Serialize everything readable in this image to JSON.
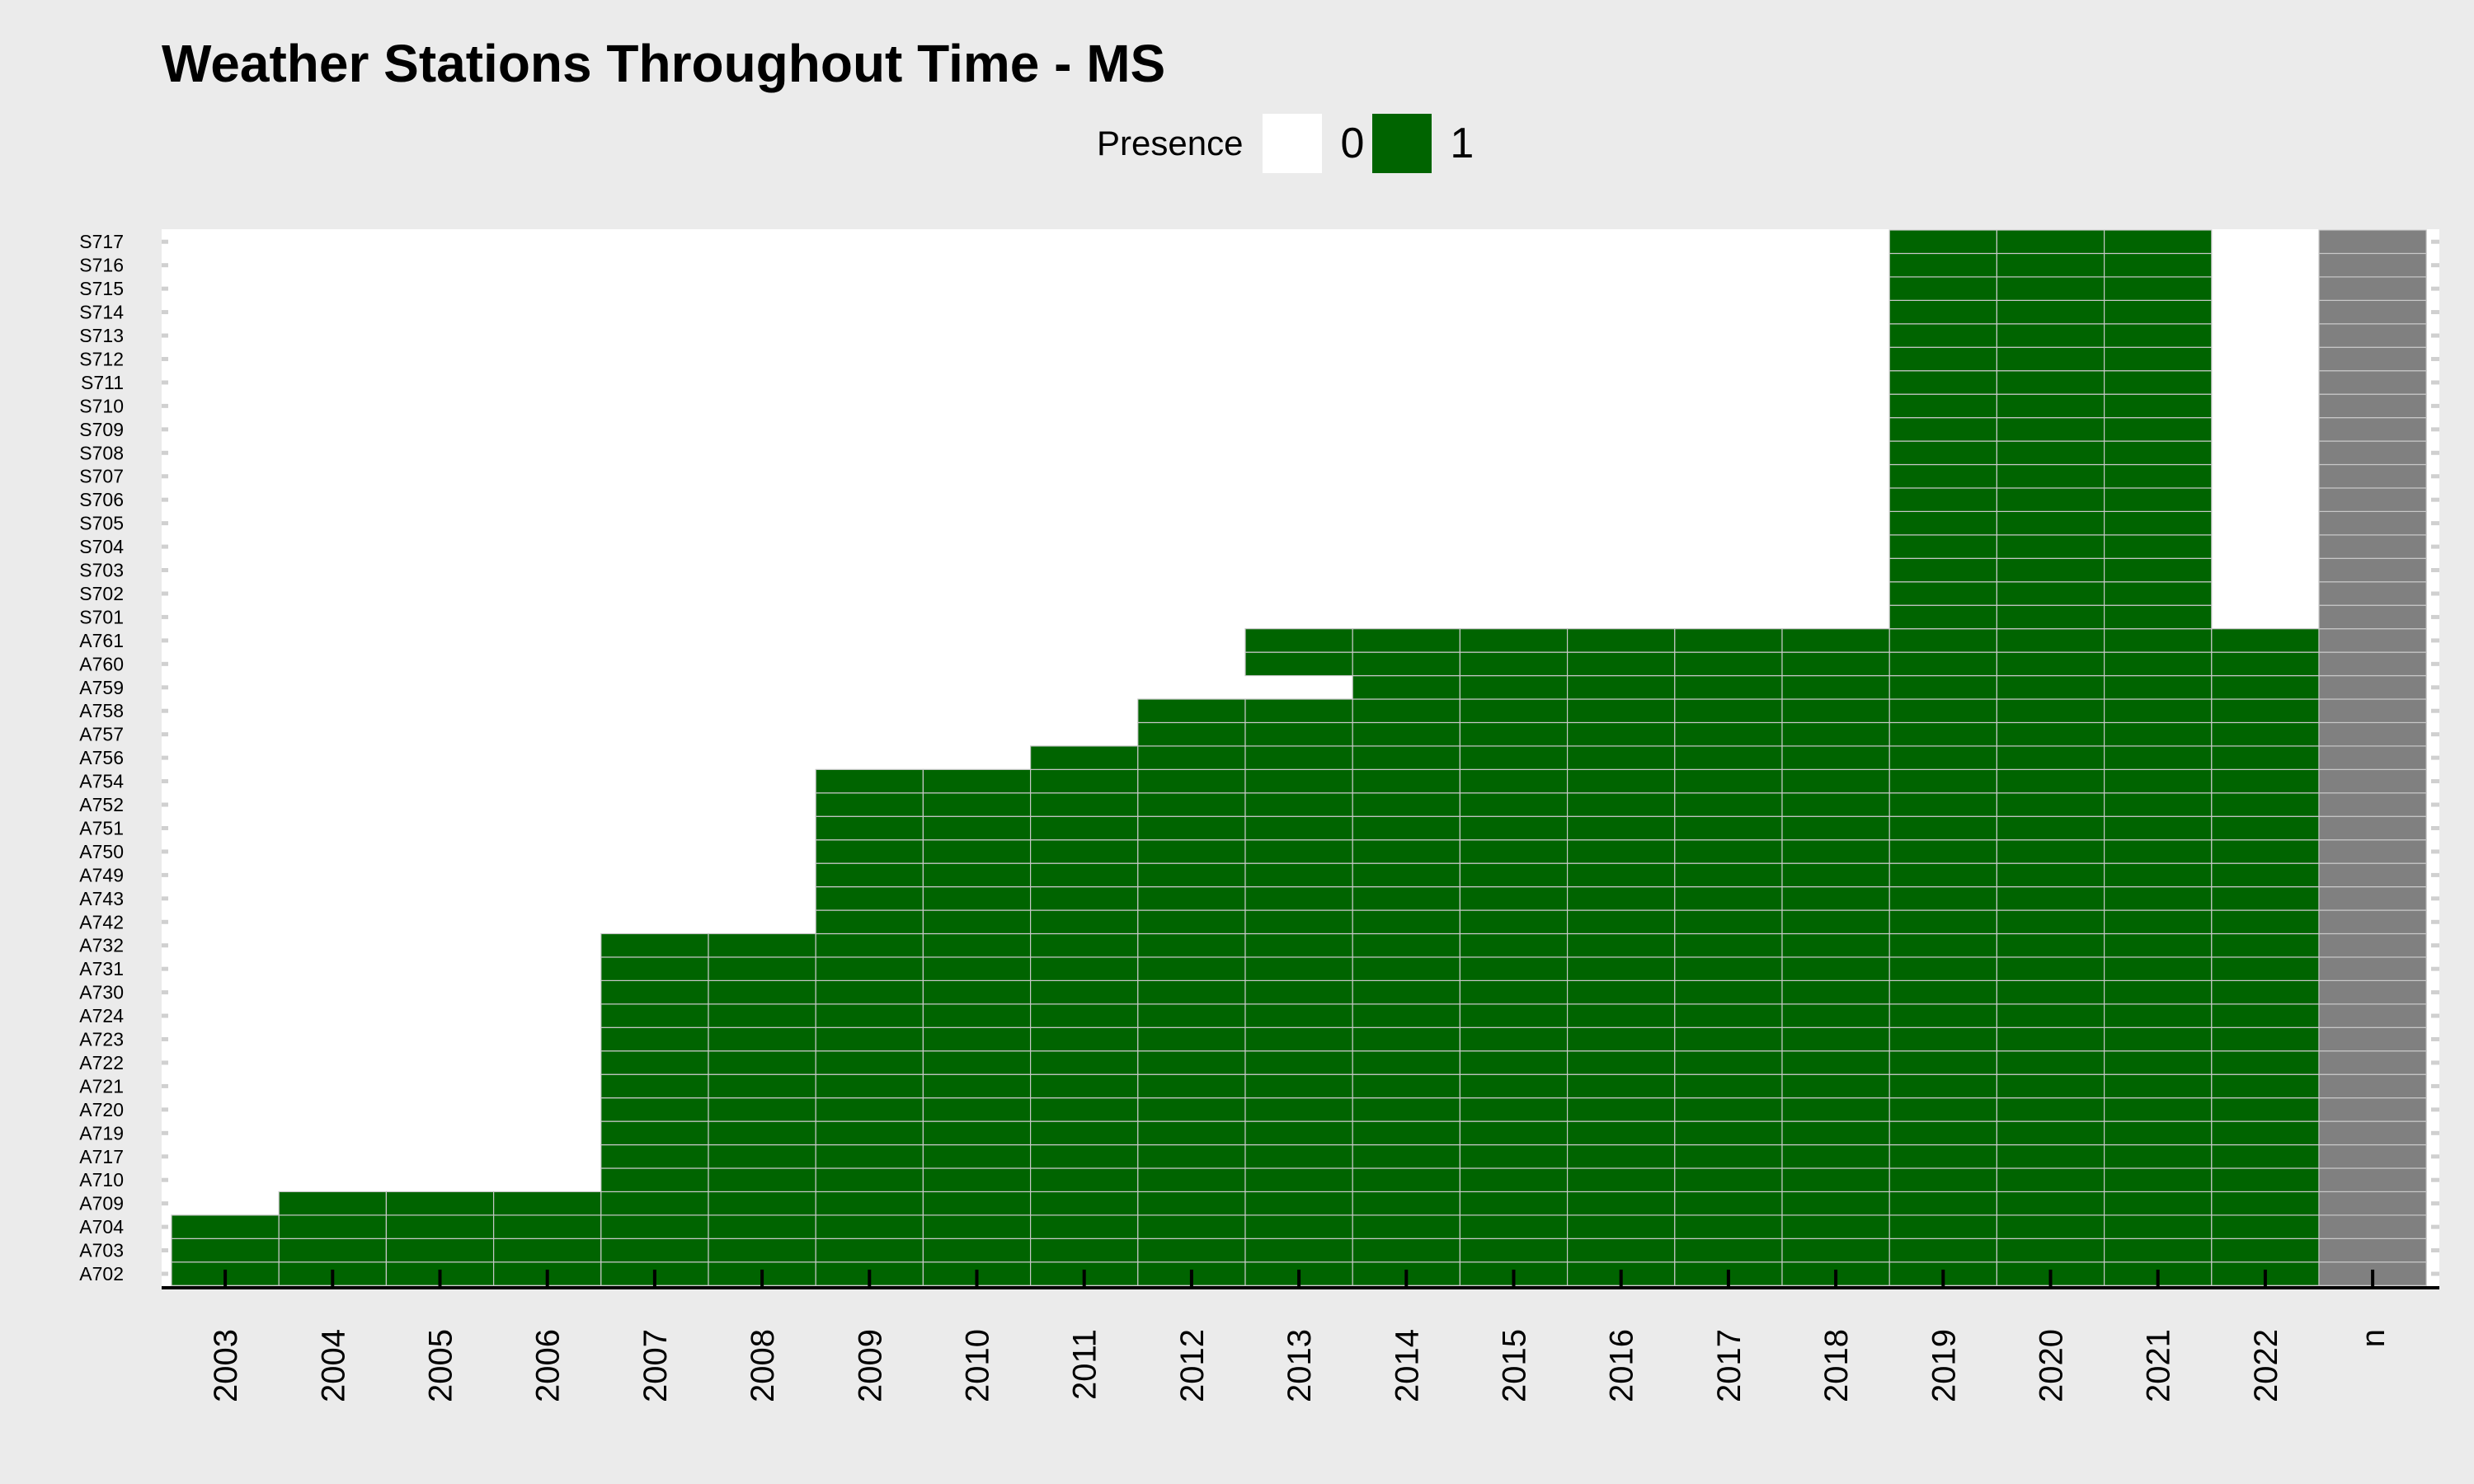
{
  "chart_data": {
    "type": "heatmap",
    "title": "Weather Stations Throughout Time - MS",
    "xlabel": "",
    "ylabel": "",
    "legend": {
      "title": "Presence",
      "position": "top",
      "entries": [
        {
          "label": "0",
          "color": "#ffffff"
        },
        {
          "label": "1",
          "color": "#006400"
        }
      ]
    },
    "x_categories": [
      "2003",
      "2004",
      "2005",
      "2006",
      "2007",
      "2008",
      "2009",
      "2010",
      "2011",
      "2012",
      "2013",
      "2014",
      "2015",
      "2016",
      "2017",
      "2018",
      "2019",
      "2020",
      "2021",
      "2022",
      "n"
    ],
    "total_column": {
      "label": "n",
      "color": "#808080"
    },
    "y_categories": [
      "A702",
      "A703",
      "A704",
      "A709",
      "A710",
      "A717",
      "A719",
      "A720",
      "A721",
      "A722",
      "A723",
      "A724",
      "A730",
      "A731",
      "A732",
      "A742",
      "A743",
      "A749",
      "A750",
      "A751",
      "A752",
      "A754",
      "A756",
      "A757",
      "A758",
      "A759",
      "A760",
      "A761",
      "S701",
      "S702",
      "S703",
      "S704",
      "S705",
      "S706",
      "S707",
      "S708",
      "S709",
      "S710",
      "S711",
      "S712",
      "S713",
      "S714",
      "S715",
      "S716",
      "S717"
    ],
    "presence": {
      "A702": [
        2003,
        2022
      ],
      "A703": [
        2003,
        2022
      ],
      "A704": [
        2003,
        2022
      ],
      "A709": [
        2004,
        2022
      ],
      "A710": [
        2007,
        2022
      ],
      "A717": [
        2007,
        2022
      ],
      "A719": [
        2007,
        2022
      ],
      "A720": [
        2007,
        2022
      ],
      "A721": [
        2007,
        2022
      ],
      "A722": [
        2007,
        2022
      ],
      "A723": [
        2007,
        2022
      ],
      "A724": [
        2007,
        2022
      ],
      "A730": [
        2007,
        2022
      ],
      "A731": [
        2007,
        2022
      ],
      "A732": [
        2007,
        2022
      ],
      "A742": [
        2009,
        2022
      ],
      "A743": [
        2009,
        2022
      ],
      "A749": [
        2009,
        2022
      ],
      "A750": [
        2009,
        2022
      ],
      "A751": [
        2009,
        2022
      ],
      "A752": [
        2009,
        2022
      ],
      "A754": [
        2009,
        2022
      ],
      "A756": [
        2011,
        2022
      ],
      "A757": [
        2012,
        2022
      ],
      "A758": [
        2012,
        2022
      ],
      "A759": [
        2014,
        2022
      ],
      "A760": [
        2013,
        2022
      ],
      "A761": [
        2013,
        2022
      ],
      "S701": [
        2019,
        2021
      ],
      "S702": [
        2019,
        2021
      ],
      "S703": [
        2019,
        2021
      ],
      "S704": [
        2019,
        2021
      ],
      "S705": [
        2019,
        2021
      ],
      "S706": [
        2019,
        2021
      ],
      "S707": [
        2019,
        2021
      ],
      "S708": [
        2019,
        2021
      ],
      "S709": [
        2019,
        2021
      ],
      "S710": [
        2019,
        2021
      ],
      "S711": [
        2019,
        2021
      ],
      "S712": [
        2019,
        2021
      ],
      "S713": [
        2019,
        2021
      ],
      "S714": [
        2019,
        2021
      ],
      "S715": [
        2019,
        2021
      ],
      "S716": [
        2019,
        2021
      ],
      "S717": [
        2019,
        2021
      ]
    },
    "colors": {
      "present": "#006400",
      "absent": "#ffffff",
      "n_column": "#808080",
      "background": "#ebebeb",
      "cell_border": "#c8c8c8"
    },
    "grid": false
  }
}
